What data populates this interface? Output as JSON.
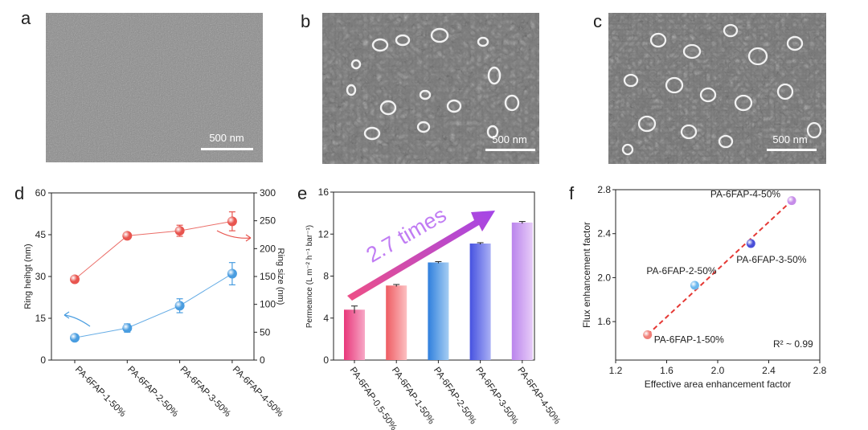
{
  "panels": {
    "a": "a",
    "b": "b",
    "c": "c",
    "d": "d",
    "e": "e",
    "f": "f"
  },
  "sem_images": [
    {
      "scale_label": "500 nm"
    },
    {
      "scale_label": "500 nm"
    },
    {
      "scale_label": "500 nm"
    }
  ],
  "chart_data": [
    {
      "type": "line",
      "categories": [
        "PA-6FAP-1-50%",
        "PA-6FAP-2-50%",
        "PA-6FAP-3-50%",
        "PA-6FAP-4-50%"
      ],
      "series": [
        {
          "axis": "right",
          "color": "#e8554f",
          "values": [
            145,
            223,
            232,
            249
          ],
          "errors": [
            4,
            5,
            10,
            17
          ]
        },
        {
          "axis": "left",
          "color": "#4a9de0",
          "values": [
            8,
            11.5,
            19.5,
            31
          ],
          "errors": [
            1,
            1.5,
            2.5,
            4
          ]
        }
      ],
      "ylabel": "Ring heihgt (nm)",
      "ylabel_right": "Ring size (nm)",
      "ylim": [
        0,
        60
      ],
      "ylim_right": [
        0,
        300
      ],
      "yticks": [
        "0",
        "15",
        "30",
        "45",
        "60"
      ],
      "yticks_right": [
        "0",
        "50",
        "100",
        "150",
        "200",
        "250",
        "300"
      ]
    },
    {
      "type": "bar",
      "categories": [
        "PA-6FAP-0.5-50%",
        "PA-6FAP-1-50%",
        "PA-6FAP-2-50%",
        "PA-6FAP-3-50%",
        "PA-6FAP-4-50%"
      ],
      "values": [
        4.8,
        7.1,
        9.3,
        11.1,
        13.1
      ],
      "errors": [
        0.35,
        0.1,
        0.08,
        0.08,
        0.1
      ],
      "colors": [
        [
          "#f7a8c6",
          "#e8377a"
        ],
        [
          "#fcc0c2",
          "#ee5b62"
        ],
        [
          "#a6cef3",
          "#2f7fdd"
        ],
        [
          "#aab0f5",
          "#4652e0"
        ],
        [
          "#e7ccf8",
          "#ba84ec"
        ]
      ],
      "ylabel": "Permeance (L m⁻² h⁻¹ bar⁻¹)",
      "ylim": [
        0,
        16
      ],
      "yticks": [
        "0",
        "4",
        "8",
        "12",
        "16"
      ],
      "annotation": "2.7 times"
    },
    {
      "type": "scatter",
      "points": [
        {
          "x": 1.45,
          "y": 1.48,
          "label": "PA-6FAP-1-50%",
          "color": "#f07f78"
        },
        {
          "x": 1.82,
          "y": 1.93,
          "label": "PA-6FAP-2-50%",
          "color": "#6cb8ee"
        },
        {
          "x": 2.26,
          "y": 2.31,
          "label": "PA-6FAP-3-50%",
          "color": "#4a4fd9"
        },
        {
          "x": 2.58,
          "y": 2.7,
          "label": "PA-6FAP-4-50%",
          "color": "#c68ce9"
        }
      ],
      "fit": {
        "x": [
          1.45,
          2.58
        ],
        "y": [
          1.48,
          2.7
        ],
        "color": "#e53935"
      },
      "xlabel": "Effective area enhancement factor",
      "ylabel": "Flux enhancement factor",
      "xlim": [
        1.2,
        2.8
      ],
      "ylim": [
        1.25,
        2.8
      ],
      "xticks": [
        "1.2",
        "1.6",
        "2.0",
        "2.4",
        "2.8"
      ],
      "yticks": [
        "1.6",
        "2.0",
        "2.4",
        "2.8"
      ],
      "annotation": "R² ~ 0.99"
    }
  ]
}
